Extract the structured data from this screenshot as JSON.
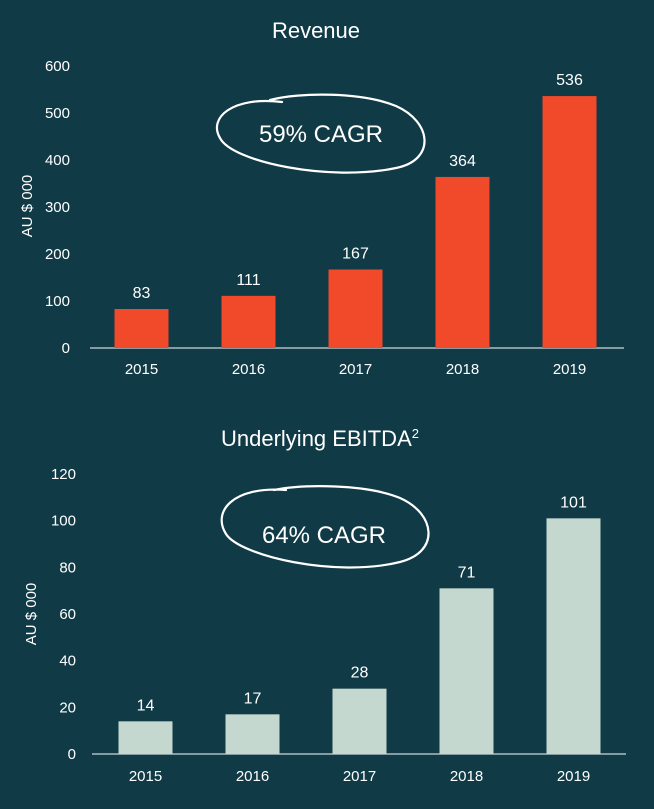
{
  "colors": {
    "background": "#0f3a46",
    "revenue_bar": "#f04a2b",
    "ebitda_bar": "#c5d8cf",
    "text": "#ffffff"
  },
  "chart_data": [
    {
      "type": "bar",
      "title": "Revenue",
      "title_superscript": "",
      "ylabel": "AU $ 000",
      "xlabel": "",
      "categories": [
        "2015",
        "2016",
        "2017",
        "2018",
        "2019"
      ],
      "values": [
        83,
        111,
        167,
        364,
        536
      ],
      "data_labels": [
        "83",
        "111",
        "167",
        "364",
        "536"
      ],
      "ylim": [
        0,
        600
      ],
      "yticks": [
        0,
        100,
        200,
        300,
        400,
        500,
        600
      ],
      "annotation": "59% CAGR",
      "grid": false,
      "bar_color": "#f04a2b"
    },
    {
      "type": "bar",
      "title": "Underlying EBITDA",
      "title_superscript": "2",
      "ylabel": "AU $ 000",
      "xlabel": "",
      "categories": [
        "2015",
        "2016",
        "2017",
        "2018",
        "2019"
      ],
      "values": [
        14,
        17,
        28,
        71,
        101
      ],
      "data_labels": [
        "14",
        "17",
        "28",
        "71",
        "101"
      ],
      "ylim": [
        0,
        120
      ],
      "yticks": [
        0,
        20,
        40,
        60,
        80,
        100,
        120
      ],
      "annotation": "64% CAGR",
      "grid": false,
      "bar_color": "#c5d8cf"
    }
  ]
}
